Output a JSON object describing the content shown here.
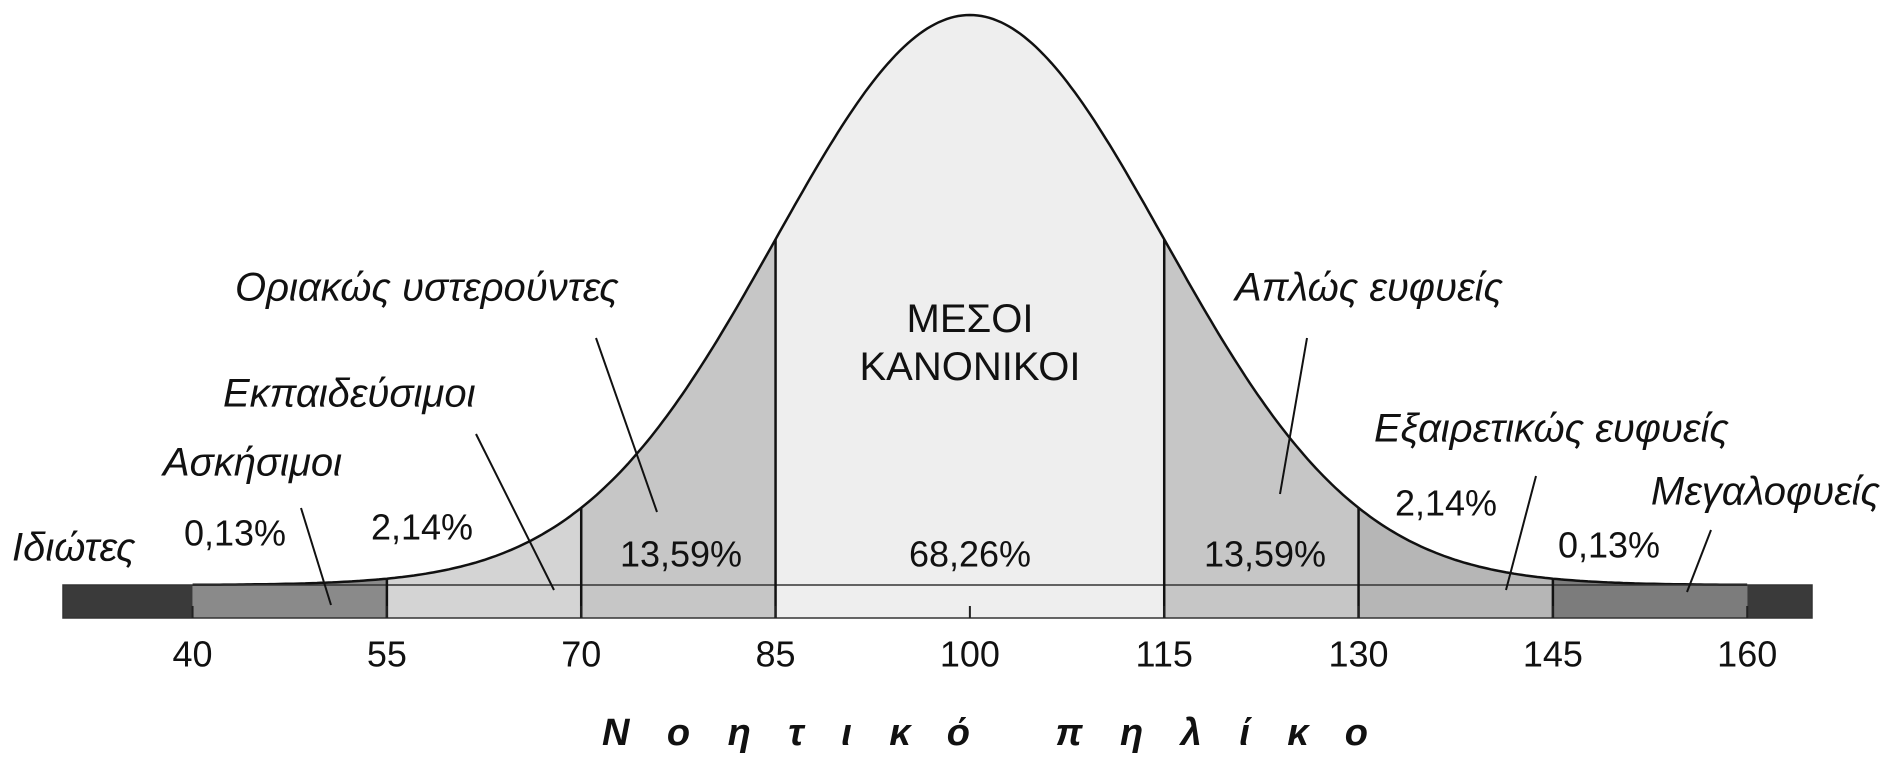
{
  "chart_data": {
    "type": "normal",
    "xlabel": "Νοητικό πηλίκο",
    "xlim": [
      30,
      165
    ],
    "xticks": [
      40,
      55,
      70,
      85,
      100,
      115,
      130,
      145,
      160
    ],
    "bins": [
      30,
      40,
      55,
      70,
      85,
      115,
      130,
      145,
      160
    ],
    "categories": [
      "Ιδιώτες",
      "Ασκήσιμοι",
      "Εκπαιδεύσιμοι",
      "Οριακώς υστερούντες",
      "ΜΕΣΟΙ ΚΑΝΟΝΙΚΟΙ",
      "Απλώς ευφυείς",
      "Εξαιρετικώς ευφυείς",
      "Μεγαλοφυείς"
    ],
    "values": [
      null,
      0.13,
      2.14,
      13.59,
      68.26,
      13.59,
      2.14,
      0.13
    ],
    "value_labels": [
      null,
      "0,13%",
      "2,14%",
      "13,59%",
      "68,26%",
      "13,59%",
      "2,14%",
      "0,13%"
    ],
    "colors": [
      "#3a3a3a",
      "#8a8a8a",
      "#d4d4d4",
      "#c6c6c6",
      "#eeeeee",
      "#c6c6c6",
      "#b6b6b6",
      "#7c7c7c"
    ]
  }
}
